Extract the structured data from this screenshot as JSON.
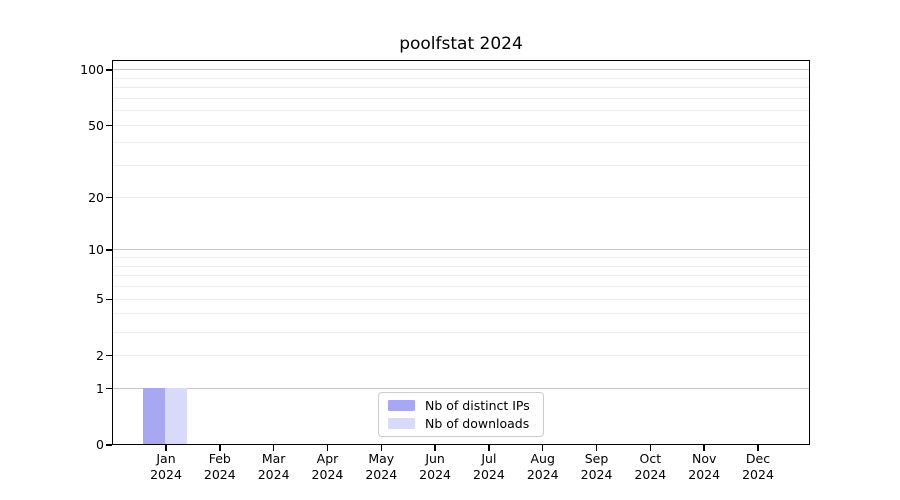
{
  "window": {
    "background": "#ffffff"
  },
  "chart_data": {
    "type": "bar",
    "title": "poolfstat 2024",
    "categories": [
      {
        "month": "Jan",
        "year": "2024"
      },
      {
        "month": "Feb",
        "year": "2024"
      },
      {
        "month": "Mar",
        "year": "2024"
      },
      {
        "month": "Apr",
        "year": "2024"
      },
      {
        "month": "May",
        "year": "2024"
      },
      {
        "month": "Jun",
        "year": "2024"
      },
      {
        "month": "Jul",
        "year": "2024"
      },
      {
        "month": "Aug",
        "year": "2024"
      },
      {
        "month": "Sep",
        "year": "2024"
      },
      {
        "month": "Oct",
        "year": "2024"
      },
      {
        "month": "Nov",
        "year": "2024"
      },
      {
        "month": "Dec",
        "year": "2024"
      }
    ],
    "series": [
      {
        "name": "Nb of distinct IPs",
        "color": "#a8a8f2",
        "values": [
          1,
          0,
          0,
          0,
          0,
          0,
          0,
          0,
          0,
          0,
          0,
          0
        ]
      },
      {
        "name": "Nb of downloads",
        "color": "#d9d9f9",
        "values": [
          1,
          0,
          0,
          0,
          0,
          0,
          0,
          0,
          0,
          0,
          0,
          0
        ]
      }
    ],
    "y_axis": {
      "scale": "log1p",
      "tick_values": [
        0,
        1,
        2,
        5,
        10,
        20,
        50,
        100
      ],
      "tick_labels": [
        "0",
        "1",
        "2",
        "5",
        "10",
        "20",
        "50",
        "100"
      ],
      "major_grid_values": [
        1,
        10,
        100
      ],
      "minor_grid_values": [
        2,
        3,
        4,
        5,
        6,
        7,
        8,
        9,
        20,
        30,
        40,
        50,
        60,
        70,
        80,
        90
      ],
      "range": [
        0,
        113
      ]
    },
    "grid": "horizontal",
    "legend_position": "lower-center-inside",
    "colors": {
      "major_grid": "#c6c6c6",
      "minor_grid": "#ededed",
      "axis": "#000000",
      "text": "#000000"
    }
  }
}
